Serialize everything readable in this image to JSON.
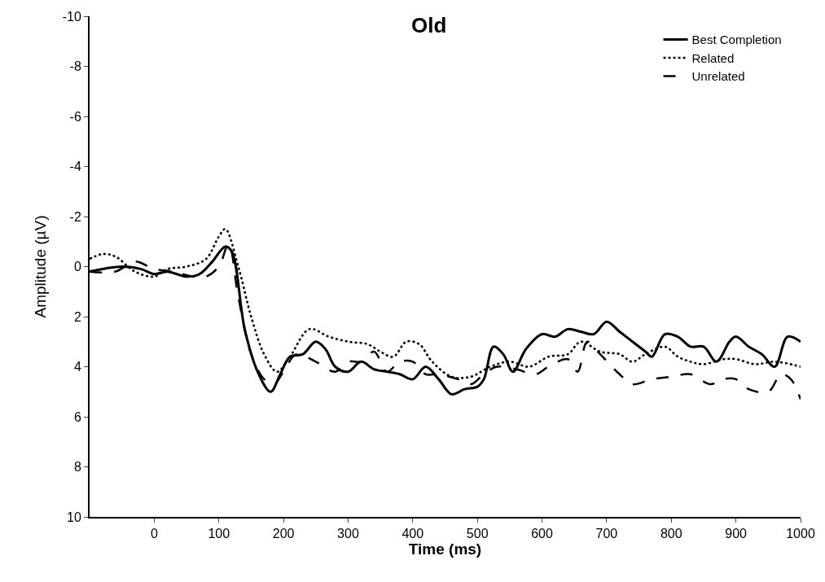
{
  "chart_data": {
    "type": "line",
    "title": "Old",
    "xlabel": "Time (ms)",
    "ylabel": "Amplitude (µV)",
    "xlim": [
      -100,
      1000
    ],
    "xticks": [
      0,
      100,
      200,
      300,
      400,
      500,
      600,
      700,
      800,
      900,
      1000
    ],
    "ylim": [
      10,
      -10
    ],
    "yticks": [
      -10,
      -8,
      -6,
      -4,
      -2,
      0,
      2,
      4,
      6,
      8,
      10
    ],
    "legend": "top right",
    "marker": "none",
    "series": [
      {
        "name": "Best Completion",
        "color": "#000000",
        "line_style": "solid",
        "x": [
          -100,
          -50,
          -20,
          0,
          20,
          50,
          70,
          90,
          110,
          120,
          140,
          160,
          180,
          195,
          210,
          230,
          250,
          265,
          280,
          300,
          320,
          340,
          360,
          380,
          400,
          420,
          440,
          460,
          480,
          500,
          510,
          525,
          540,
          555,
          575,
          600,
          620,
          640,
          660,
          680,
          700,
          720,
          740,
          760,
          770,
          790,
          810,
          830,
          850,
          870,
          890,
          900,
          920,
          940,
          960,
          980,
          1000
        ],
        "values": [
          0.2,
          0.0,
          0.1,
          0.3,
          0.2,
          0.4,
          0.3,
          -0.2,
          -0.8,
          -0.6,
          2.5,
          4.2,
          5.0,
          4.3,
          3.6,
          3.5,
          3.0,
          3.3,
          4.0,
          4.2,
          3.8,
          4.1,
          4.2,
          4.3,
          4.5,
          4.0,
          4.5,
          5.1,
          4.9,
          4.8,
          4.5,
          3.2,
          3.5,
          4.2,
          3.3,
          2.7,
          2.8,
          2.5,
          2.6,
          2.7,
          2.2,
          2.6,
          3.0,
          3.4,
          3.6,
          2.7,
          2.8,
          3.2,
          3.2,
          3.8,
          3.0,
          2.8,
          3.2,
          3.5,
          4.0,
          2.8,
          3.0
        ]
      },
      {
        "name": "Related",
        "color": "#000000",
        "line_style": "dotted",
        "x": [
          -100,
          -80,
          -60,
          -30,
          0,
          20,
          50,
          80,
          100,
          110,
          130,
          150,
          170,
          190,
          210,
          240,
          270,
          300,
          330,
          350,
          370,
          390,
          410,
          430,
          460,
          490,
          520,
          550,
          580,
          610,
          640,
          660,
          690,
          720,
          740,
          760,
          790,
          810,
          830,
          850,
          880,
          900,
          930,
          960,
          1000
        ],
        "values": [
          -0.3,
          -0.5,
          -0.4,
          0.2,
          0.4,
          0.1,
          0.0,
          -0.3,
          -1.2,
          -1.5,
          0.0,
          2.0,
          3.5,
          4.2,
          3.6,
          2.5,
          2.8,
          3.0,
          3.1,
          3.4,
          3.6,
          3.0,
          3.1,
          3.8,
          4.4,
          4.4,
          4.0,
          3.8,
          4.0,
          3.6,
          3.5,
          3.0,
          3.4,
          3.5,
          3.8,
          3.5,
          3.2,
          3.6,
          3.8,
          3.9,
          3.7,
          3.7,
          3.9,
          3.8,
          4.0
        ]
      },
      {
        "name": "Unrelated",
        "color": "#000000",
        "line_style": "dashed",
        "x": [
          -100,
          -60,
          -30,
          0,
          30,
          60,
          80,
          100,
          115,
          130,
          150,
          170,
          185,
          200,
          220,
          250,
          280,
          300,
          320,
          340,
          360,
          380,
          400,
          420,
          440,
          470,
          490,
          510,
          530,
          560,
          590,
          610,
          640,
          655,
          670,
          690,
          720,
          740,
          770,
          800,
          830,
          860,
          880,
          900,
          920,
          950,
          970,
          985,
          1000
        ],
        "values": [
          0.2,
          0.2,
          -0.2,
          0.1,
          0.2,
          0.4,
          0.4,
          0.0,
          -0.9,
          1.2,
          3.5,
          4.5,
          4.7,
          4.2,
          3.5,
          3.8,
          4.2,
          3.8,
          3.8,
          3.4,
          4.2,
          3.8,
          3.8,
          4.3,
          4.3,
          4.5,
          4.7,
          4.3,
          4.0,
          4.1,
          4.3,
          4.0,
          3.7,
          4.2,
          3.0,
          3.5,
          4.3,
          4.7,
          4.5,
          4.4,
          4.3,
          4.7,
          4.5,
          4.5,
          4.9,
          5.0,
          4.3,
          4.5,
          5.3
        ]
      }
    ]
  }
}
